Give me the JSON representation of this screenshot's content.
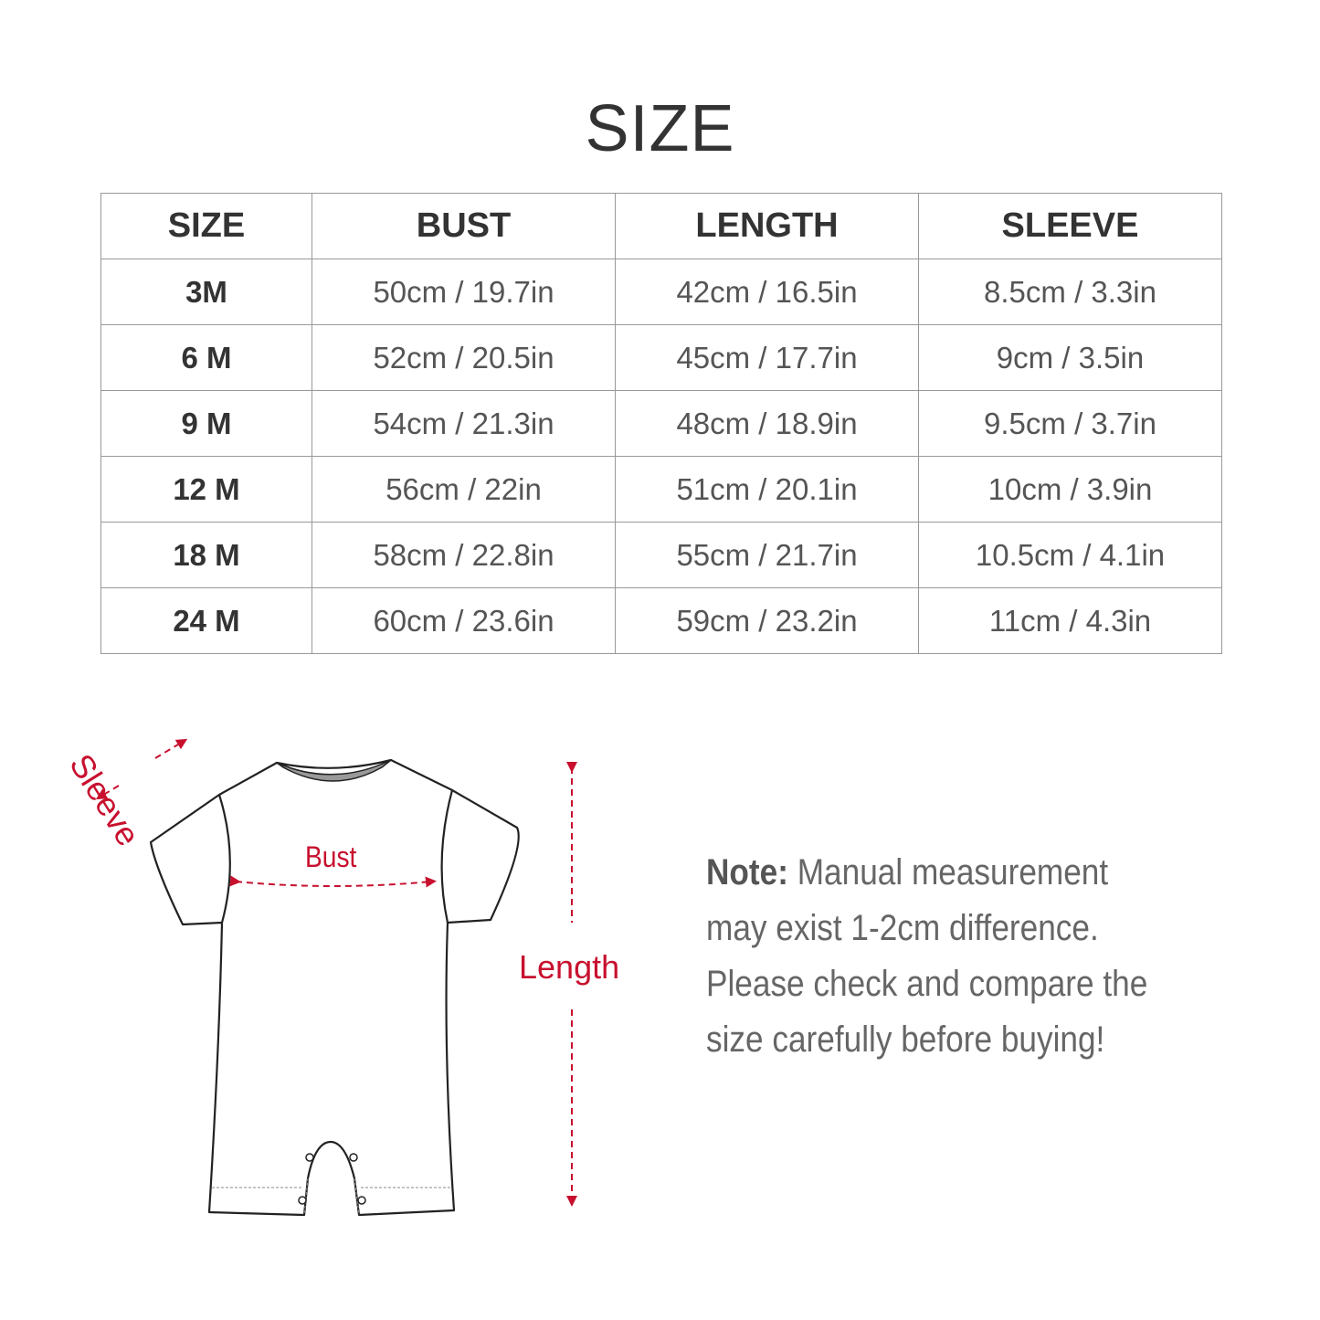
{
  "title": "SIZE",
  "table": {
    "headers": [
      "SIZE",
      "BUST",
      "LENGTH",
      "SLEEVE"
    ],
    "rows": [
      [
        "3M",
        "50cm / 19.7in",
        "42cm / 16.5in",
        "8.5cm / 3.3in"
      ],
      [
        "6 M",
        "52cm / 20.5in",
        "45cm / 17.7in",
        "9cm / 3.5in"
      ],
      [
        "9 M",
        "54cm / 21.3in",
        "48cm / 18.9in",
        "9.5cm / 3.7in"
      ],
      [
        "12 M",
        "56cm / 22in",
        "51cm / 20.1in",
        "10cm / 3.9in"
      ],
      [
        "18 M",
        "58cm / 22.8in",
        "55cm / 21.7in",
        "10.5cm / 4.1in"
      ],
      [
        "24 M",
        "60cm / 23.6in",
        "59cm / 23.2in",
        "11cm / 4.3in"
      ]
    ]
  },
  "diagram": {
    "sleeve_label": "Sleeve",
    "bust_label": "Bust",
    "length_label": "Length",
    "accent_color": "#c8102e"
  },
  "note": {
    "label": "Note:",
    "text": " Manual measurement may exist 1-2cm difference. Please check and compare the size carefully before buying!"
  }
}
